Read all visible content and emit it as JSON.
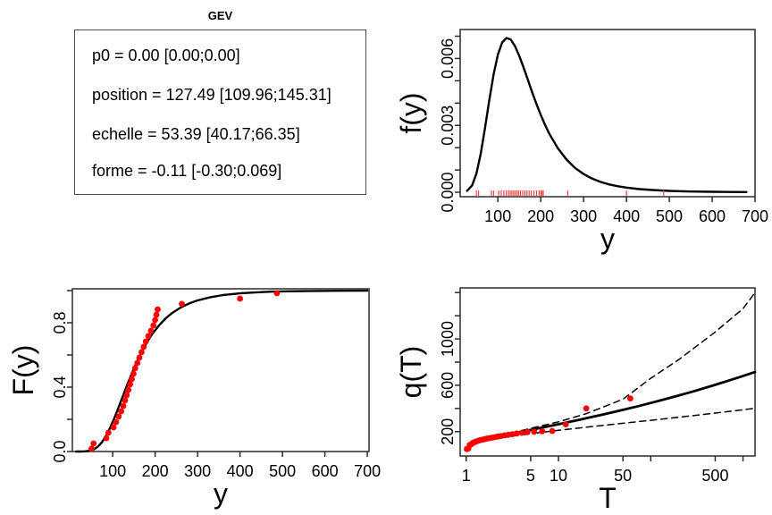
{
  "figure_title": "GEV",
  "colors": {
    "curve": "#000000",
    "points": "#ff0000",
    "rug": "#ff4444",
    "frame": "#2b2b2b",
    "text": "#000000"
  },
  "params": {
    "title": "GEV",
    "lines": [
      "p0 = 0.00 [0.00;0.00]",
      "position = 127.49 [109.96;145.31]",
      "echelle = 53.39 [40.17;66.35]",
      "forme = -0.11 [-0.30;0.069]"
    ]
  },
  "chart_data": [
    {
      "id": "params-table",
      "type": "table",
      "title": "GEV",
      "rows": [
        "p0 = 0.00 [0.00;0.00]",
        "position = 127.49 [109.96;145.31]",
        "echelle = 53.39 [40.17;66.35]",
        "forme = -0.11 [-0.30;0.069]"
      ]
    },
    {
      "id": "density",
      "type": "line",
      "xlabel": "y",
      "ylabel": "f(y)",
      "xlog": false,
      "xlim": [
        12,
        700
      ],
      "ylim": [
        -0.0002,
        0.0073
      ],
      "box": {
        "l": 83,
        "t": 33,
        "r": 413,
        "b": 220
      },
      "xticks": [
        {
          "v": 100,
          "l": "100"
        },
        {
          "v": 200,
          "l": "200"
        },
        {
          "v": 300,
          "l": "300"
        },
        {
          "v": 400,
          "l": "400"
        },
        {
          "v": 500,
          "l": "500"
        },
        {
          "v": 600,
          "l": "600"
        },
        {
          "v": 700,
          "l": "700"
        }
      ],
      "yticks": [
        {
          "v": 0,
          "l": "0.000"
        },
        {
          "v": 0.001
        },
        {
          "v": 0.002
        },
        {
          "v": 0.003,
          "l": "0.003"
        },
        {
          "v": 0.004
        },
        {
          "v": 0.005
        },
        {
          "v": 0.006,
          "l": "0.006"
        },
        {
          "v": 0.007
        }
      ],
      "series": [
        {
          "name": "gev-density-curve",
          "kind": "line",
          "color": "#000000",
          "width": 2.4,
          "x": [
            28,
            40,
            50,
            60,
            70,
            80,
            90,
            100,
            110,
            120,
            130,
            140,
            150,
            160,
            170,
            180,
            190,
            200,
            210,
            220,
            240,
            260,
            280,
            300,
            320,
            340,
            360,
            380,
            400,
            430,
            460,
            500,
            550,
            600,
            640,
            680
          ],
          "y": [
            6e-05,
            0.00031,
            0.00084,
            0.00172,
            0.00288,
            0.00413,
            0.00528,
            0.00617,
            0.00672,
            0.00692,
            0.00685,
            0.00655,
            0.00611,
            0.00559,
            0.00504,
            0.00448,
            0.00396,
            0.00347,
            0.00302,
            0.00262,
            0.00197,
            0.00147,
            0.00109,
            0.00082,
            0.00061,
            0.00046,
            0.00035,
            0.00027,
            0.00021,
            0.00014,
            0.0001,
            6e-05,
            3.4e-05,
            2e-05,
            1.3e-05,
            1e-05
          ]
        },
        {
          "name": "observation-rug",
          "kind": "rug",
          "color": "#ff4444",
          "width": 1.2,
          "values": [
            50,
            55,
            85,
            90,
            102,
            108,
            114,
            120,
            125,
            129,
            133,
            137,
            141,
            145,
            149,
            153,
            158,
            163,
            168,
            173,
            178,
            184,
            190,
            196,
            200,
            203,
            206,
            263,
            400,
            487
          ]
        }
      ]
    },
    {
      "id": "cdf",
      "type": "line+scatter",
      "xlabel": "y",
      "ylabel": "F(y)",
      "xlog": false,
      "xlim": [
        5,
        704
      ],
      "ylim": [
        0,
        1.011
      ],
      "box": {
        "l": 81,
        "t": 35,
        "r": 413,
        "b": 217
      },
      "xticks": [
        {
          "v": 100,
          "l": "100"
        },
        {
          "v": 200,
          "l": "200"
        },
        {
          "v": 300,
          "l": "300"
        },
        {
          "v": 400,
          "l": "400"
        },
        {
          "v": 500,
          "l": "500"
        },
        {
          "v": 600,
          "l": "600"
        },
        {
          "v": 700,
          "l": "700"
        }
      ],
      "yticks": [
        {
          "v": 0,
          "l": "0.0"
        },
        {
          "v": 0.2
        },
        {
          "v": 0.4,
          "l": "0.4"
        },
        {
          "v": 0.6
        },
        {
          "v": 0.8,
          "l": "0.8"
        },
        {
          "v": 1.0
        }
      ],
      "series": [
        {
          "name": "gev-cdf-curve",
          "kind": "line",
          "color": "#000000",
          "width": 2.4,
          "x": [
            14,
            25,
            35,
            45,
            55,
            65,
            75,
            85,
            95,
            105,
            115,
            125,
            135,
            145,
            155,
            165,
            175,
            185,
            195,
            210,
            225,
            240,
            260,
            280,
            300,
            330,
            360,
            400,
            440,
            480,
            530,
            580,
            640,
            700
          ],
          "y": [
            0.0,
            0.0002,
            0.0011,
            0.0043,
            0.0129,
            0.0302,
            0.059,
            0.1003,
            0.153,
            0.2146,
            0.2815,
            0.3507,
            0.4191,
            0.4845,
            0.5456,
            0.6016,
            0.6519,
            0.6968,
            0.7363,
            0.7867,
            0.8275,
            0.8605,
            0.8946,
            0.92,
            0.939,
            0.9588,
            0.9719,
            0.9827,
            0.9892,
            0.994,
            0.9959,
            0.9975,
            0.9986,
            0.9992
          ]
        },
        {
          "name": "empirical-cdf-points",
          "kind": "points",
          "color": "#ff0000",
          "r": 3.4,
          "x": [
            50,
            55,
            85,
            90,
            102,
            108,
            114,
            120,
            125,
            129,
            133,
            137,
            141,
            145,
            149,
            153,
            158,
            163,
            168,
            173,
            178,
            184,
            190,
            196,
            200,
            203,
            206,
            263,
            400,
            487
          ],
          "y": [
            0.017,
            0.05,
            0.083,
            0.117,
            0.15,
            0.183,
            0.217,
            0.25,
            0.283,
            0.317,
            0.35,
            0.383,
            0.417,
            0.45,
            0.483,
            0.517,
            0.55,
            0.583,
            0.617,
            0.65,
            0.683,
            0.717,
            0.75,
            0.783,
            0.817,
            0.85,
            0.883,
            0.917,
            0.95,
            0.983
          ]
        }
      ]
    },
    {
      "id": "return",
      "type": "line+scatter",
      "xlabel": "T",
      "ylabel": "q(T)",
      "xlog": true,
      "xlim": [
        0.86,
        1350
      ],
      "ylim": [
        -10,
        1440
      ],
      "box": {
        "l": 83,
        "t": 34,
        "r": 413,
        "b": 222
      },
      "xticks": [
        {
          "v": 1,
          "l": "1"
        },
        {
          "v": 5,
          "l": "5"
        },
        {
          "v": 10,
          "l": "10"
        },
        {
          "v": 50,
          "l": "50"
        },
        {
          "v": 100
        },
        {
          "v": 500,
          "l": "500"
        },
        {
          "v": 1000
        }
      ],
      "yticks": [
        {
          "v": 200,
          "l": "200"
        },
        {
          "v": 400
        },
        {
          "v": 600,
          "l": "600"
        },
        {
          "v": 800
        },
        {
          "v": 1000,
          "l": "1000"
        },
        {
          "v": 1200
        },
        {
          "v": 1400
        }
      ],
      "series": [
        {
          "name": "upper-confidence-band",
          "kind": "line",
          "color": "#000000",
          "width": 1.5,
          "dash": "7,5",
          "x": [
            1.1,
            1.5,
            2,
            3,
            5,
            10,
            20,
            50,
            100,
            200,
            500,
            1000,
            1349
          ],
          "y": [
            84,
            126,
            152,
            186,
            228,
            285,
            355,
            480,
            660,
            820,
            1060,
            1260,
            1400
          ]
        },
        {
          "name": "lower-confidence-band",
          "kind": "line",
          "color": "#000000",
          "width": 1.5,
          "dash": "7,5",
          "x": [
            1.1,
            1.5,
            2,
            3,
            5,
            10,
            20,
            50,
            100,
            200,
            500,
            1000,
            1349
          ],
          "y": [
            82,
            117,
            137,
            159,
            183,
            211,
            238,
            272,
            298,
            324,
            360,
            389,
            401
          ]
        },
        {
          "name": "return-level-curve",
          "kind": "line",
          "color": "#000000",
          "width": 2.8,
          "x": [
            1.02,
            1.1,
            1.2,
            1.35,
            1.5,
            1.75,
            2,
            2.5,
            3,
            4,
            5,
            7,
            10,
            15,
            20,
            30,
            50,
            70,
            100,
            150,
            200,
            300,
            500,
            700,
            1000,
            1349
          ],
          "y": [
            59.6,
            83,
            97.3,
            111.7,
            122.5,
            136.4,
            147.5,
            164.7,
            178.2,
            198.8,
            214.6,
            238.3,
            263.8,
            293.5,
            315.1,
            346.4,
            387.7,
            416.1,
            447.2,
            484.1,
            511.2,
            551,
            603.6,
            639.9,
            679.8,
            714.5
          ]
        },
        {
          "name": "empirical-return-points",
          "kind": "points",
          "color": "#ff0000",
          "r": 3.4,
          "x": [
            1.017,
            1.053,
            1.091,
            1.132,
            1.176,
            1.224,
            1.277,
            1.333,
            1.395,
            1.463,
            1.538,
            1.622,
            1.714,
            1.818,
            1.935,
            2.069,
            2.222,
            2.4,
            2.609,
            2.857,
            3.158,
            3.529,
            4.0,
            4.615,
            5.455,
            6.667,
            8.571,
            12.0,
            20.0,
            60.0
          ],
          "y": [
            50,
            55,
            85,
            90,
            102,
            108,
            114,
            120,
            125,
            129,
            133,
            137,
            141,
            145,
            149,
            153,
            158,
            163,
            168,
            173,
            178,
            184,
            190,
            196,
            200,
            203,
            206,
            263,
            400,
            487
          ]
        }
      ]
    }
  ],
  "style": {
    "tick_font_px": 18,
    "axis_title_font_px": 32,
    "tick_len": 6
  }
}
